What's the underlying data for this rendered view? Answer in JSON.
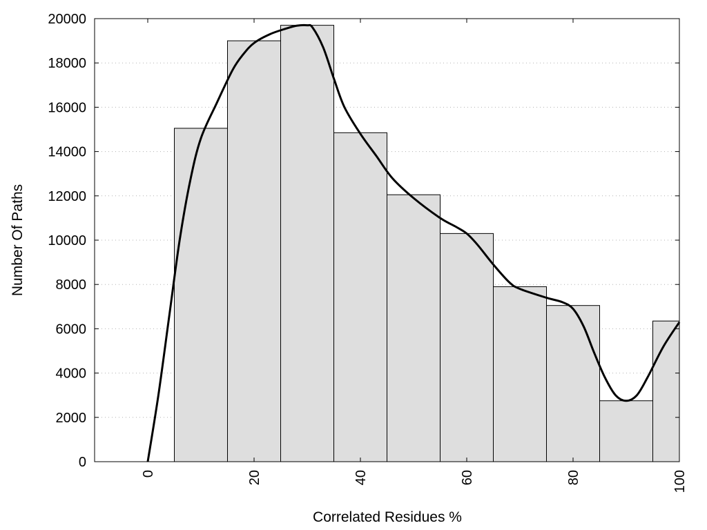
{
  "chart_data": {
    "type": "bar",
    "title": "",
    "xlabel": "Correlated Residues %",
    "ylabel": "Number Of Paths",
    "xlim": [
      -10,
      100
    ],
    "ylim": [
      0,
      20000
    ],
    "x_ticks": [
      0,
      20,
      40,
      60,
      80,
      100
    ],
    "y_ticks": [
      0,
      2000,
      4000,
      6000,
      8000,
      10000,
      12000,
      14000,
      16000,
      18000,
      20000
    ],
    "grid": "horizontal dotted",
    "bins": [
      {
        "x0": 5,
        "x1": 15,
        "value": 15050
      },
      {
        "x0": 15,
        "x1": 25,
        "value": 19000
      },
      {
        "x0": 25,
        "x1": 35,
        "value": 19700
      },
      {
        "x0": 35,
        "x1": 45,
        "value": 14850
      },
      {
        "x0": 45,
        "x1": 55,
        "value": 12050
      },
      {
        "x0": 55,
        "x1": 65,
        "value": 10300
      },
      {
        "x0": 65,
        "x1": 75,
        "value": 7900
      },
      {
        "x0": 75,
        "x1": 85,
        "value": 7050
      },
      {
        "x0": 85,
        "x1": 95,
        "value": 2750
      },
      {
        "x0": 95,
        "x1": 100,
        "value": 6350
      }
    ],
    "smooth_curve": [
      [
        0,
        0
      ],
      [
        2,
        3000
      ],
      [
        4,
        6500
      ],
      [
        6,
        10000
      ],
      [
        8,
        12700
      ],
      [
        10,
        14600
      ],
      [
        13,
        16200
      ],
      [
        16,
        17700
      ],
      [
        18,
        18400
      ],
      [
        20,
        18900
      ],
      [
        23,
        19300
      ],
      [
        26,
        19550
      ],
      [
        28,
        19680
      ],
      [
        30,
        19700
      ],
      [
        31,
        19600
      ],
      [
        33,
        18700
      ],
      [
        35,
        17300
      ],
      [
        37,
        16000
      ],
      [
        40,
        14800
      ],
      [
        43,
        13800
      ],
      [
        46,
        12800
      ],
      [
        50,
        11900
      ],
      [
        55,
        11000
      ],
      [
        58,
        10600
      ],
      [
        60,
        10300
      ],
      [
        62,
        9800
      ],
      [
        65,
        8900
      ],
      [
        68,
        8100
      ],
      [
        70,
        7800
      ],
      [
        75,
        7400
      ],
      [
        78,
        7200
      ],
      [
        80,
        6900
      ],
      [
        82,
        6100
      ],
      [
        84,
        4900
      ],
      [
        86,
        3800
      ],
      [
        88,
        3000
      ],
      [
        90,
        2750
      ],
      [
        92,
        3000
      ],
      [
        94,
        3800
      ],
      [
        97,
        5200
      ],
      [
        100,
        6300
      ]
    ],
    "colors": {
      "bar_fill": "#dedede",
      "bar_stroke": "#000000",
      "curve": "#000000"
    }
  }
}
